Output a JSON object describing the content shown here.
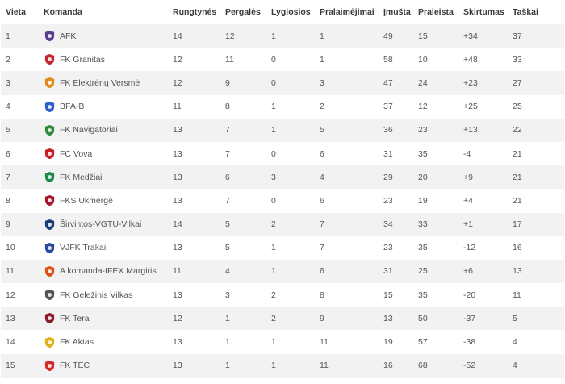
{
  "headers": {
    "position": "Vieta",
    "team": "Komanda",
    "played": "Rungtynės",
    "won": "Pergalės",
    "drawn": "Lygiosios",
    "lost": "Pralaimėjimai",
    "goals_for": "Įmušta",
    "goals_against": "Praleista",
    "goal_diff": "Skirtumas",
    "points": "Taškai"
  },
  "rows": [
    {
      "pos": "1",
      "team": "AFK",
      "icon": "afk-crest-icon",
      "color": "#5a3e8f",
      "played": "14",
      "won": "12",
      "drawn": "1",
      "lost": "1",
      "gf": "49",
      "ga": "15",
      "gd": "+34",
      "pts": "37"
    },
    {
      "pos": "2",
      "team": "FK Granitas",
      "icon": "granitas-crest-icon",
      "color": "#c0262d",
      "played": "12",
      "won": "11",
      "drawn": "0",
      "lost": "1",
      "gf": "58",
      "ga": "10",
      "gd": "+48",
      "pts": "33"
    },
    {
      "pos": "3",
      "team": "FK Elektrėnų Versmė",
      "icon": "versme-crest-icon",
      "color": "#e08a1c",
      "played": "12",
      "won": "9",
      "drawn": "0",
      "lost": "3",
      "gf": "47",
      "ga": "24",
      "gd": "+23",
      "pts": "27"
    },
    {
      "pos": "4",
      "team": "BFA-B",
      "icon": "bfa-crest-icon",
      "color": "#2f5fc8",
      "played": "11",
      "won": "8",
      "drawn": "1",
      "lost": "2",
      "gf": "37",
      "ga": "12",
      "gd": "+25",
      "pts": "25"
    },
    {
      "pos": "5",
      "team": "FK Navigatoriai",
      "icon": "navigatoriai-crest-icon",
      "color": "#2e8b3a",
      "played": "13",
      "won": "7",
      "drawn": "1",
      "lost": "5",
      "gf": "36",
      "ga": "23",
      "gd": "+13",
      "pts": "22"
    },
    {
      "pos": "6",
      "team": "FC Vova",
      "icon": "vova-crest-icon",
      "color": "#c8202a",
      "played": "13",
      "won": "7",
      "drawn": "0",
      "lost": "6",
      "gf": "31",
      "ga": "35",
      "gd": "-4",
      "pts": "21"
    },
    {
      "pos": "7",
      "team": "FK Medžiai",
      "icon": "medziai-crest-icon",
      "color": "#1f8a4c",
      "played": "13",
      "won": "6",
      "drawn": "3",
      "lost": "4",
      "gf": "29",
      "ga": "20",
      "gd": "+9",
      "pts": "21"
    },
    {
      "pos": "8",
      "team": "FKS Ukmergė",
      "icon": "ukmerge-crest-icon",
      "color": "#a3162b",
      "played": "13",
      "won": "7",
      "drawn": "0",
      "lost": "6",
      "gf": "23",
      "ga": "19",
      "gd": "+4",
      "pts": "21"
    },
    {
      "pos": "9",
      "team": "Širvintos-VGTU-Vilkai",
      "icon": "vilkai-crest-icon",
      "color": "#1d3a78",
      "played": "14",
      "won": "5",
      "drawn": "2",
      "lost": "7",
      "gf": "34",
      "ga": "33",
      "gd": "+1",
      "pts": "17"
    },
    {
      "pos": "10",
      "team": "VJFK Trakai",
      "icon": "trakai-crest-icon",
      "color": "#2a4aa0",
      "played": "13",
      "won": "5",
      "drawn": "1",
      "lost": "7",
      "gf": "23",
      "ga": "35",
      "gd": "-12",
      "pts": "16"
    },
    {
      "pos": "11",
      "team": "A komanda-IFEX Margiris",
      "icon": "margiris-crest-icon",
      "color": "#d9521b",
      "played": "11",
      "won": "4",
      "drawn": "1",
      "lost": "6",
      "gf": "31",
      "ga": "25",
      "gd": "+6",
      "pts": "13"
    },
    {
      "pos": "12",
      "team": "FK Geležinis Vilkas",
      "icon": "gelezinis-vilkas-crest-icon",
      "color": "#555555",
      "played": "13",
      "won": "3",
      "drawn": "2",
      "lost": "8",
      "gf": "15",
      "ga": "35",
      "gd": "-20",
      "pts": "11"
    },
    {
      "pos": "13",
      "team": "FK Tera",
      "icon": "tera-crest-icon",
      "color": "#8a1c2a",
      "played": "12",
      "won": "1",
      "drawn": "2",
      "lost": "9",
      "gf": "13",
      "ga": "50",
      "gd": "-37",
      "pts": "5"
    },
    {
      "pos": "14",
      "team": "FK Aktas",
      "icon": "aktas-crest-icon",
      "color": "#e0b21a",
      "played": "13",
      "won": "1",
      "drawn": "1",
      "lost": "11",
      "gf": "19",
      "ga": "57",
      "gd": "-38",
      "pts": "4"
    },
    {
      "pos": "15",
      "team": "FK TEC",
      "icon": "tec-crest-icon",
      "color": "#d42a2a",
      "played": "13",
      "won": "1",
      "drawn": "1",
      "lost": "11",
      "gf": "16",
      "ga": "68",
      "gd": "-52",
      "pts": "4"
    }
  ]
}
